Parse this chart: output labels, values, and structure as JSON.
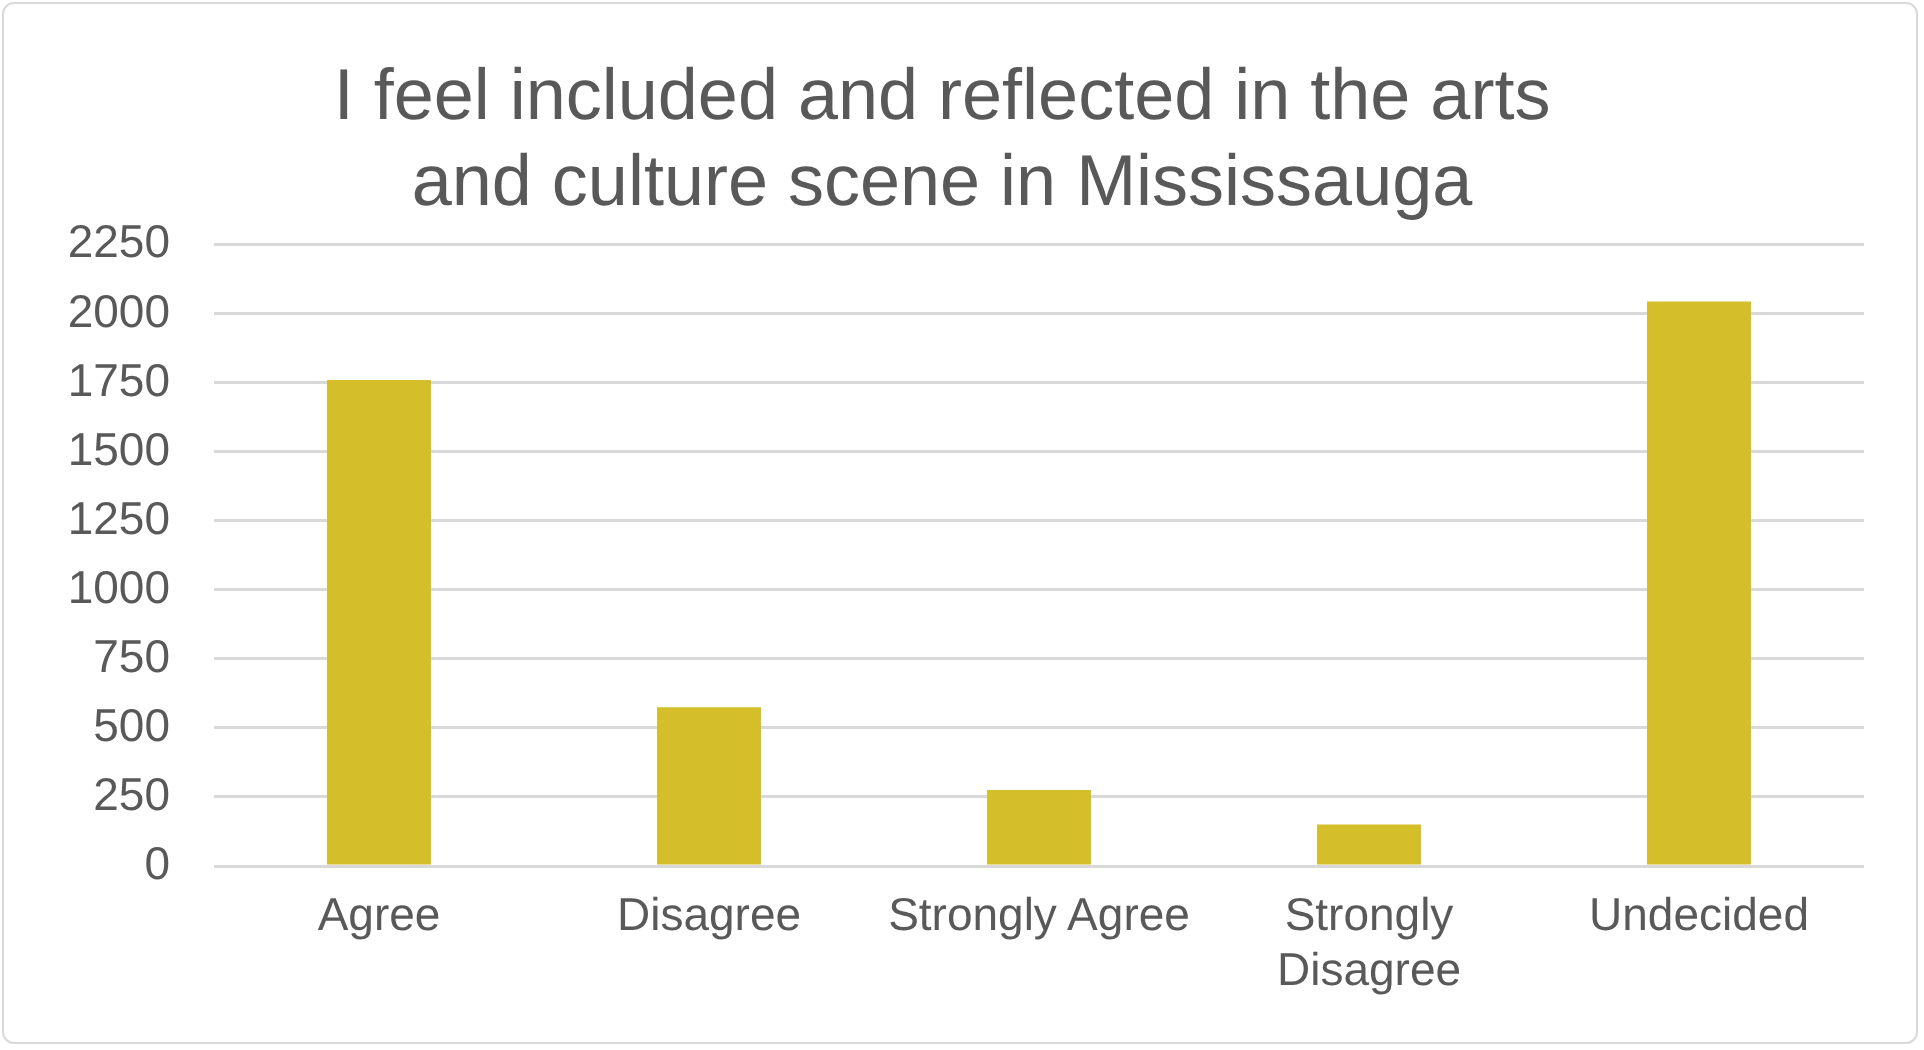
{
  "chart_data": {
    "type": "bar",
    "title": "I feel included and reflected in the arts and culture scene in Mississauga",
    "categories": [
      "Agree",
      "Disagree",
      "Strongly Agree",
      "Strongly Disagree",
      "Undecided"
    ],
    "values": [
      1760,
      575,
      275,
      150,
      2045
    ],
    "color": "#d4bf2b",
    "ylim": [
      0,
      2250
    ],
    "yticks": [
      0,
      250,
      500,
      750,
      1000,
      1250,
      1500,
      1750,
      2000,
      2250
    ],
    "grid": "y"
  }
}
